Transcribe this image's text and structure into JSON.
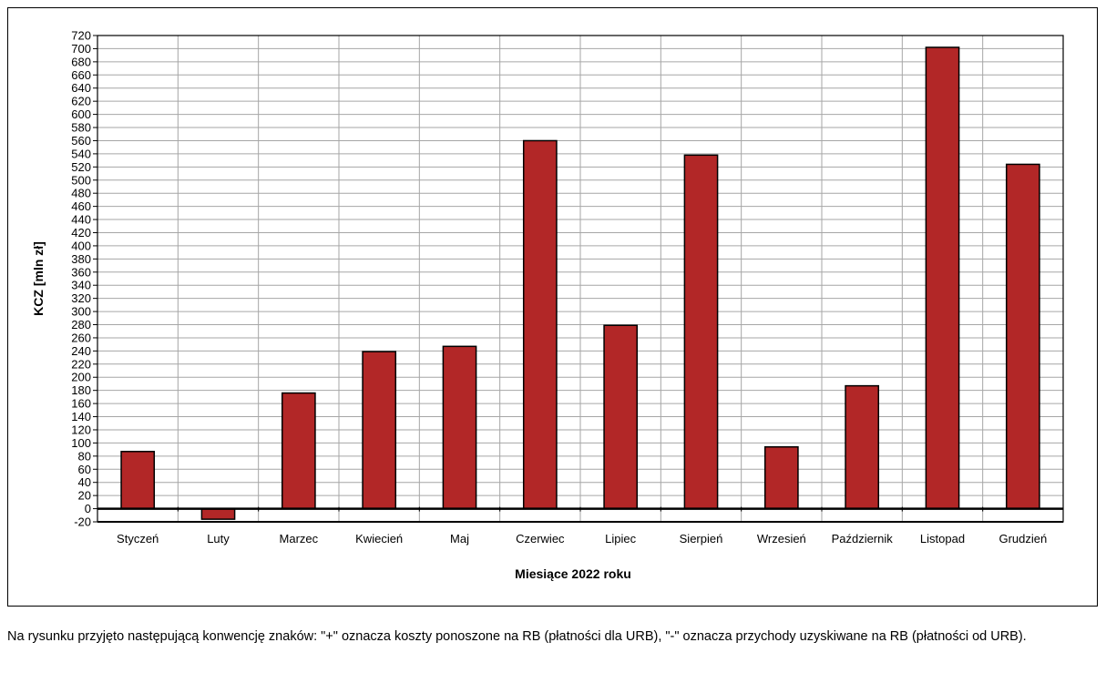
{
  "chart_data": {
    "type": "bar",
    "categories": [
      "Styczeń",
      "Luty",
      "Marzec",
      "Kwiecień",
      "Maj",
      "Czerwiec",
      "Lipiec",
      "Sierpień",
      "Wrzesień",
      "Październik",
      "Listopad",
      "Grudzień"
    ],
    "values": [
      87,
      -16,
      176,
      239,
      247,
      560,
      279,
      538,
      94,
      187,
      702,
      524
    ],
    "title": "",
    "xlabel": "Miesiące 2022 roku",
    "ylabel": "KCZ [mln zł]",
    "ylim": [
      -20,
      720
    ],
    "yticks": [
      720,
      700,
      680,
      660,
      640,
      620,
      600,
      580,
      560,
      540,
      520,
      500,
      480,
      460,
      440,
      420,
      400,
      380,
      360,
      340,
      320,
      300,
      280,
      260,
      240,
      220,
      200,
      180,
      160,
      140,
      120,
      100,
      80,
      60,
      40,
      20,
      0,
      -20
    ],
    "ytick_step": 20,
    "grid": true,
    "legend": "none",
    "colors": {
      "bar": "#b22727",
      "bar_edge": "#000000",
      "grid": "#a6a6a6"
    }
  },
  "caption": "Na rysunku przyjęto następującą konwencję znaków: \"+\" oznacza koszty ponoszone na RB (płatności dla URB), \"-\" oznacza przychody uzyskiwane na RB (płatności od URB)."
}
